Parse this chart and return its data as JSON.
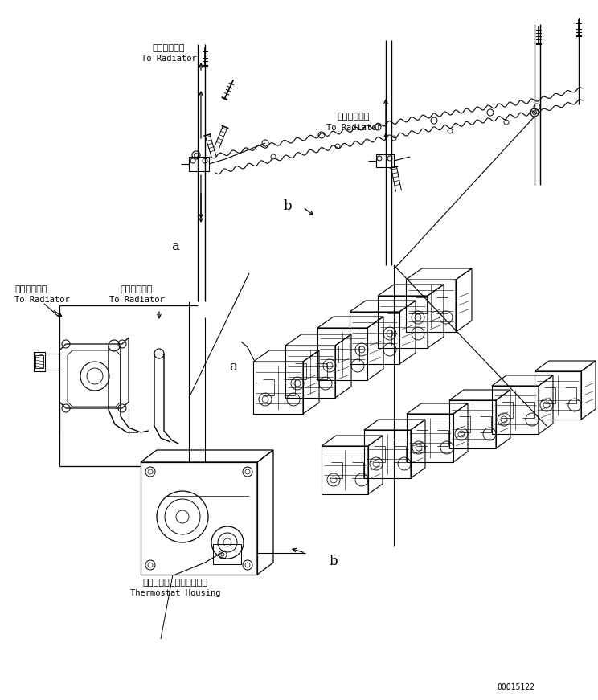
{
  "background_color": "#ffffff",
  "line_color": "#000000",
  "fig_width": 7.44,
  "fig_height": 8.71,
  "dpi": 100,
  "part_number": "00015122",
  "labels": {
    "label_a1_jp": "ラジエータへ",
    "label_a1_en": "To Radiator",
    "label_a2_jp": "ラジエータへ",
    "label_a2_en": "To Radiator",
    "label_a3_jp": "ラジエータへ",
    "label_a3_en": "To Radiator",
    "label_a4_jp": "ラジエータへ",
    "label_a4_en": "To Radiator",
    "label_thermo_jp": "サーモスタットハウジング",
    "label_thermo_en": "Thermostat Housing"
  },
  "marker_a": "a",
  "marker_b": "b"
}
